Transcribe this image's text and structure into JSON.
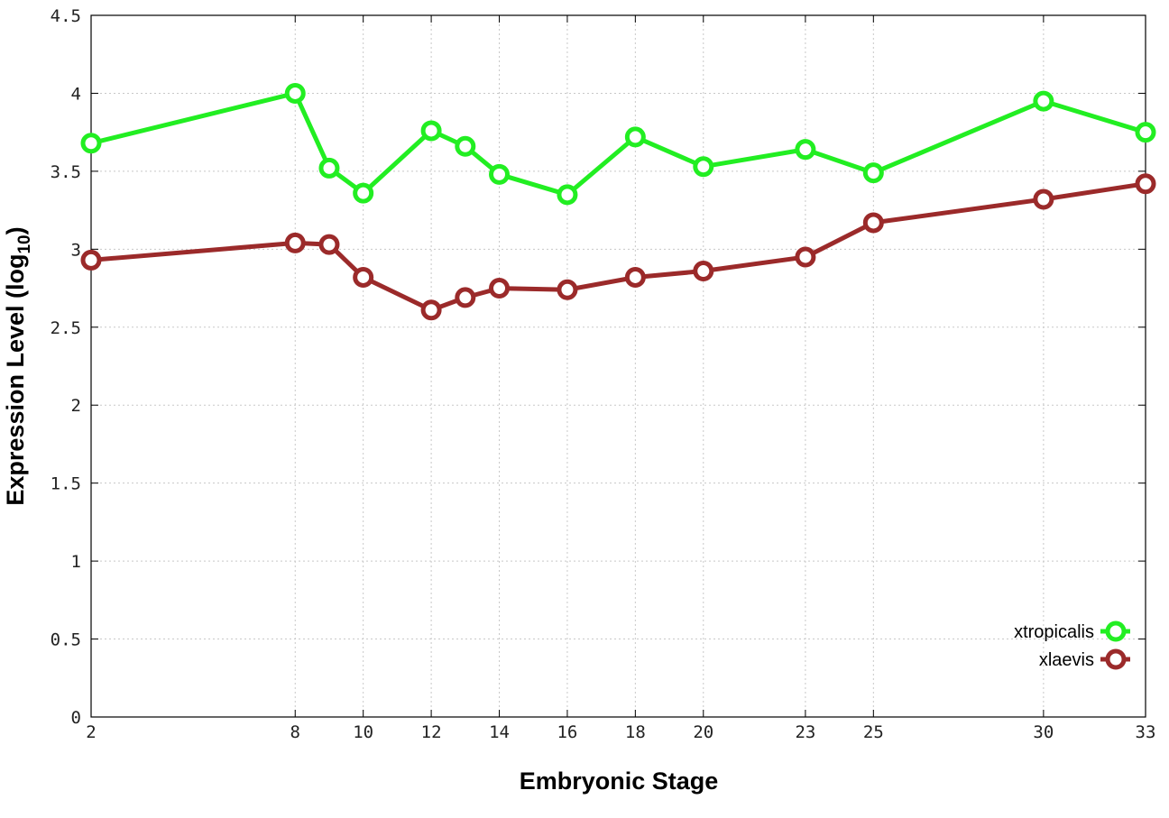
{
  "chart_data": {
    "type": "line",
    "xlabel": "Embryonic Stage",
    "ylabel_main": "Expression Level (log",
    "ylabel_sub": "10",
    "ylabel_close": ")",
    "x_ticks": [
      2,
      8,
      10,
      12,
      14,
      16,
      18,
      20,
      23,
      25,
      30,
      33
    ],
    "y_ticks": [
      0,
      0.5,
      1,
      1.5,
      2,
      2.5,
      3,
      3.5,
      4,
      4.5
    ],
    "xlim": [
      2,
      33
    ],
    "ylim": [
      0,
      4.5
    ],
    "grid": true,
    "legend_position": "bottom-right",
    "series": [
      {
        "name": "xtropicalis",
        "color": "#22ee22",
        "x": [
          2,
          8,
          9,
          10,
          12,
          13,
          14,
          16,
          18,
          20,
          23,
          25,
          30,
          33
        ],
        "y": [
          3.68,
          4.0,
          3.52,
          3.36,
          3.76,
          3.66,
          3.48,
          3.35,
          3.72,
          3.53,
          3.64,
          3.49,
          3.95,
          3.75
        ]
      },
      {
        "name": "xlaevis",
        "color": "#9b2a2a",
        "x": [
          2,
          8,
          9,
          10,
          12,
          13,
          14,
          16,
          18,
          20,
          23,
          25,
          30,
          33
        ],
        "y": [
          2.93,
          3.04,
          3.03,
          2.82,
          2.61,
          2.69,
          2.75,
          2.74,
          2.82,
          2.86,
          2.95,
          3.17,
          3.32,
          3.42
        ]
      }
    ]
  }
}
